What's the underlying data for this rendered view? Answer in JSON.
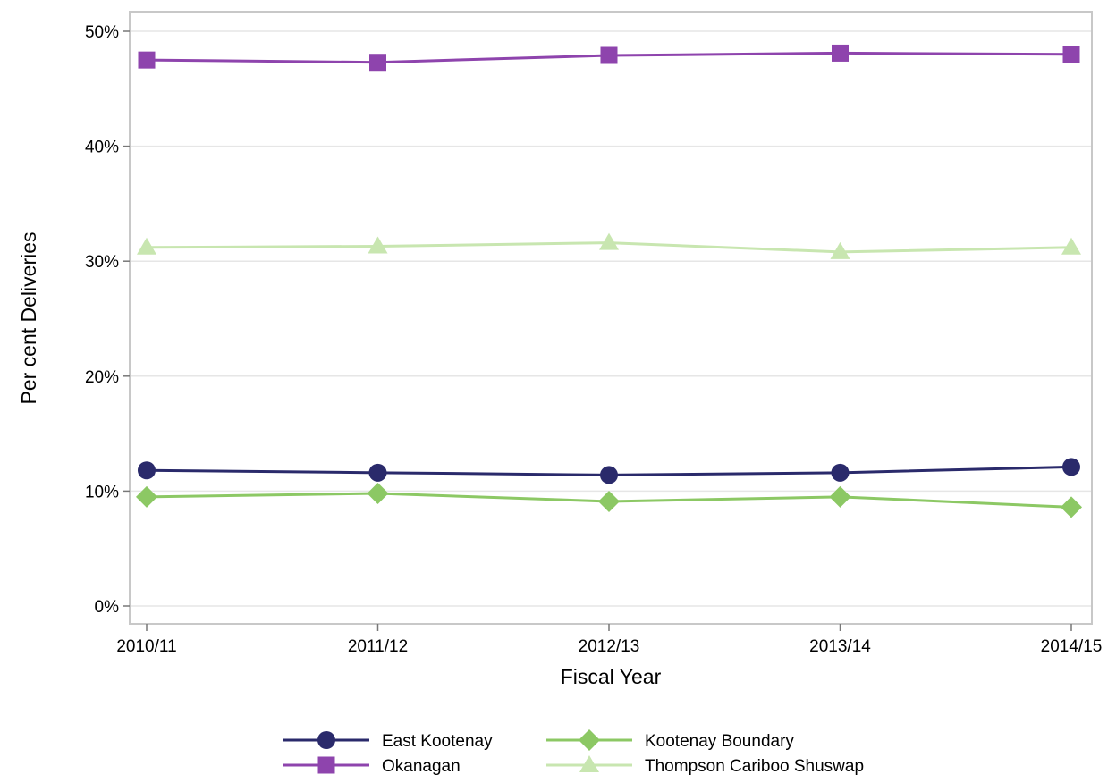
{
  "chart_data": {
    "type": "line",
    "title": "",
    "xlabel": "Fiscal Year",
    "ylabel": "Per cent Deliveries",
    "categories": [
      "2010/11",
      "2011/12",
      "2012/13",
      "2013/14",
      "2014/15"
    ],
    "ylim": [
      0,
      0.5
    ],
    "yticks": [
      0,
      0.1,
      0.2,
      0.3,
      0.4,
      0.5
    ],
    "ytick_labels": [
      "0%",
      "10%",
      "20%",
      "30%",
      "40%",
      "50%"
    ],
    "grid": "horizontal",
    "legend_position": "bottom",
    "series": [
      {
        "name": "East Kootenay",
        "values": [
          0.118,
          0.116,
          0.114,
          0.116,
          0.121
        ],
        "color": "#2a2a6b",
        "marker": "circle"
      },
      {
        "name": "Okanagan",
        "values": [
          0.475,
          0.473,
          0.479,
          0.481,
          0.48
        ],
        "color": "#8e44ad",
        "marker": "square"
      },
      {
        "name": "Kootenay Boundary",
        "values": [
          0.095,
          0.098,
          0.091,
          0.095,
          0.086
        ],
        "color": "#8cc864",
        "marker": "diamond"
      },
      {
        "name": "Thompson Cariboo Shuswap",
        "values": [
          0.312,
          0.313,
          0.316,
          0.308,
          0.312
        ],
        "color": "#c8e6b0",
        "marker": "triangle"
      }
    ]
  }
}
